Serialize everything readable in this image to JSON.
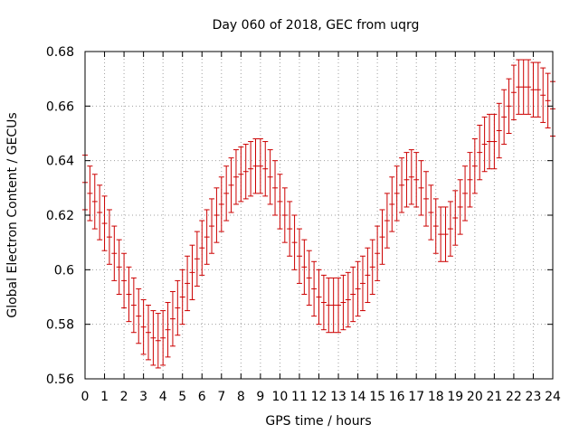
{
  "chart_data": {
    "type": "scatter",
    "title": "Day 060 of 2018, GEC from uqrg",
    "xlabel": "GPS time / hours",
    "ylabel": "Global Electron Content / GECUs",
    "xlim": [
      0,
      24
    ],
    "ylim": [
      0.56,
      0.68
    ],
    "xticks": [
      0,
      1,
      2,
      3,
      4,
      5,
      6,
      7,
      8,
      9,
      10,
      11,
      12,
      13,
      14,
      15,
      16,
      17,
      18,
      19,
      20,
      21,
      22,
      23,
      24
    ],
    "xtick_labels": [
      "0",
      "1",
      "2",
      "3",
      "4",
      "5",
      "6",
      "7",
      "8",
      "9",
      "10",
      "11",
      "12",
      "13",
      "14",
      "15",
      "16",
      "17",
      "18",
      "19",
      "20",
      "21",
      "22",
      "23",
      "24"
    ],
    "yticks": [
      0.56,
      0.58,
      0.6,
      0.62,
      0.64,
      0.66,
      0.68
    ],
    "ytick_labels": [
      "0.56",
      "0.58",
      "0.6",
      "0.62",
      "0.64",
      "0.66",
      "0.68"
    ],
    "grid": true,
    "series": [
      {
        "name": "GEC",
        "color": "#cc0000",
        "error": 0.01,
        "x": [
          0,
          0.25,
          0.5,
          0.75,
          1,
          1.25,
          1.5,
          1.75,
          2,
          2.25,
          2.5,
          2.75,
          3,
          3.25,
          3.5,
          3.75,
          4,
          4.25,
          4.5,
          4.75,
          5,
          5.25,
          5.5,
          5.75,
          6,
          6.25,
          6.5,
          6.75,
          7,
          7.25,
          7.5,
          7.75,
          8,
          8.25,
          8.5,
          8.75,
          9,
          9.25,
          9.5,
          9.75,
          10,
          10.25,
          10.5,
          10.75,
          11,
          11.25,
          11.5,
          11.75,
          12,
          12.25,
          12.5,
          12.75,
          13,
          13.25,
          13.5,
          13.75,
          14,
          14.25,
          14.5,
          14.75,
          15,
          15.25,
          15.5,
          15.75,
          16,
          16.25,
          16.5,
          16.75,
          17,
          17.25,
          17.5,
          17.75,
          18,
          18.25,
          18.5,
          18.75,
          19,
          19.25,
          19.5,
          19.75,
          20,
          20.25,
          20.5,
          20.75,
          21,
          21.25,
          21.5,
          21.75,
          22,
          22.25,
          22.5,
          22.75,
          23,
          23.25,
          23.5,
          23.75,
          24
        ],
        "y": [
          0.632,
          0.628,
          0.625,
          0.621,
          0.617,
          0.612,
          0.606,
          0.601,
          0.596,
          0.591,
          0.587,
          0.583,
          0.579,
          0.577,
          0.575,
          0.574,
          0.575,
          0.578,
          0.582,
          0.586,
          0.59,
          0.595,
          0.599,
          0.604,
          0.608,
          0.612,
          0.616,
          0.62,
          0.624,
          0.628,
          0.631,
          0.634,
          0.635,
          0.636,
          0.637,
          0.638,
          0.638,
          0.637,
          0.634,
          0.63,
          0.625,
          0.62,
          0.615,
          0.61,
          0.605,
          0.601,
          0.597,
          0.593,
          0.59,
          0.588,
          0.587,
          0.587,
          0.587,
          0.588,
          0.589,
          0.591,
          0.593,
          0.595,
          0.598,
          0.601,
          0.606,
          0.612,
          0.618,
          0.624,
          0.628,
          0.631,
          0.633,
          0.634,
          0.633,
          0.63,
          0.626,
          0.621,
          0.616,
          0.613,
          0.613,
          0.615,
          0.619,
          0.623,
          0.628,
          0.633,
          0.638,
          0.643,
          0.646,
          0.647,
          0.647,
          0.651,
          0.656,
          0.66,
          0.665,
          0.667,
          0.667,
          0.667,
          0.666,
          0.666,
          0.664,
          0.662,
          0.659
        ]
      }
    ]
  }
}
